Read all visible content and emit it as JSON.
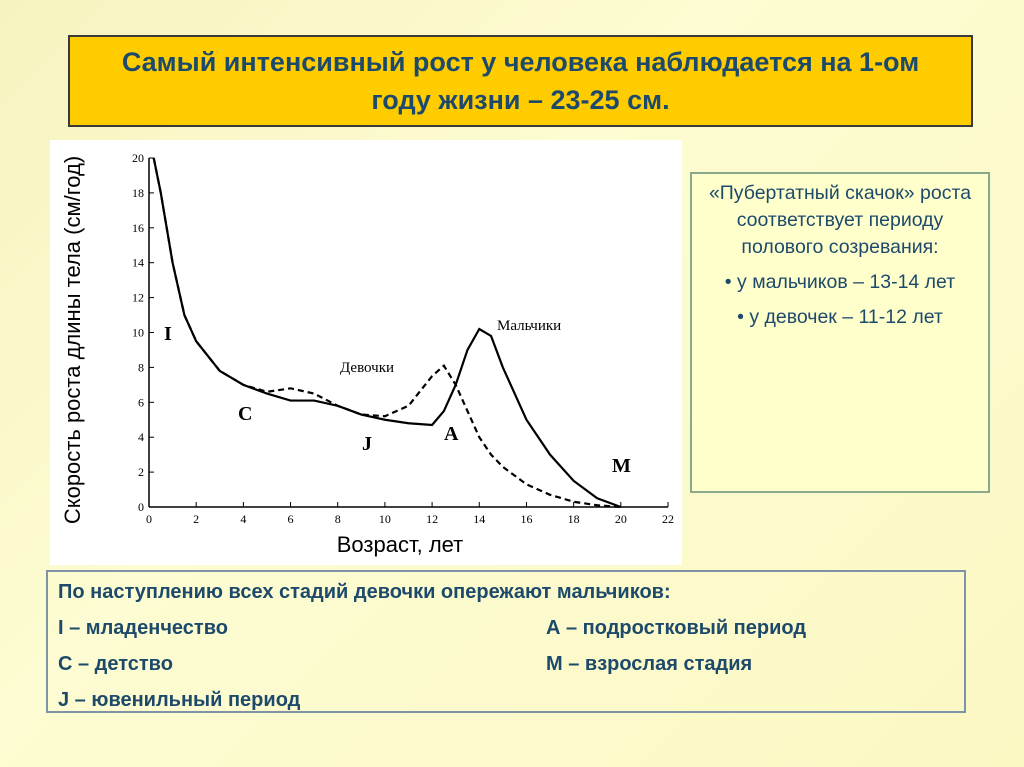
{
  "header": {
    "title": "Самый интенсивный рост у человека наблюдается на 1-ом году жизни – 23-25 см."
  },
  "chart_data": {
    "type": "line",
    "xlabel": "Возраст, лет",
    "ylabel": "Скорость роста длины тела (см/год)",
    "x": [
      0.2,
      0.5,
      1,
      1.5,
      2,
      3,
      4,
      5,
      6,
      7,
      8,
      9,
      10,
      11,
      12,
      12.5,
      13,
      13.5,
      14,
      14.5,
      15,
      16,
      17,
      18,
      19,
      20
    ],
    "series": [
      {
        "name": "Мальчики",
        "color": "#000000",
        "values": [
          20,
          18,
          14,
          11,
          9.5,
          7.8,
          7,
          6.5,
          6.1,
          6.1,
          5.8,
          5.3,
          5,
          4.8,
          4.7,
          5.5,
          7,
          9,
          10.2,
          9.8,
          8,
          5,
          3,
          1.5,
          0.5,
          0
        ]
      },
      {
        "name": "Девочки",
        "color": "#000000",
        "dashed": true,
        "values": [
          20,
          18,
          14,
          11,
          9.5,
          7.8,
          7,
          6.6,
          6.8,
          6.5,
          5.8,
          5.3,
          5.2,
          5.8,
          7.5,
          8.1,
          7,
          5.5,
          4,
          3,
          2.3,
          1.3,
          0.7,
          0.3,
          0.1,
          0
        ]
      }
    ],
    "annotations": [
      "I",
      "C",
      "J",
      "A",
      "M"
    ],
    "xlim": [
      0,
      22
    ],
    "xticks": [
      0,
      2,
      4,
      6,
      8,
      10,
      12,
      14,
      16,
      18,
      20,
      22
    ],
    "ylim": [
      0,
      20
    ],
    "yticks": [
      0,
      2,
      4,
      6,
      8,
      10,
      12,
      14,
      16,
      18,
      20
    ]
  },
  "side_box": {
    "text": "«Пубертатный скачок» роста соответствует периоду полового созревания:",
    "bullets": [
      "• у мальчиков – 13-14 лет",
      "• у девочек – 11-12 лет"
    ]
  },
  "bottom_box": {
    "heading": "По наступлению всех стадий девочки опережают мальчиков:",
    "items": [
      "I – младенчество",
      "А – подростковый период",
      "С – детство",
      "М – взрослая стадия",
      "J – ювенильный период"
    ]
  }
}
